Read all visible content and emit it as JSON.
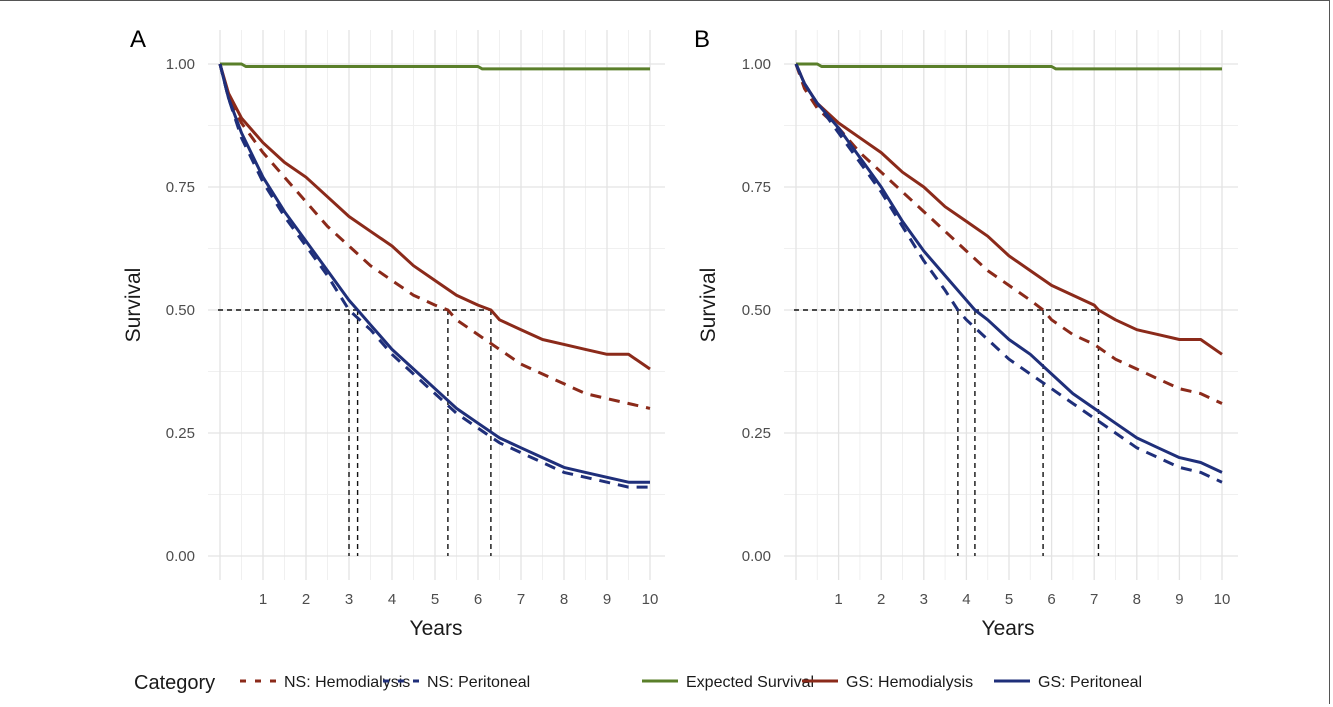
{
  "legend": {
    "title": "Category",
    "items": [
      {
        "label": "NS: Hemodialysis",
        "color": "#8b2a1a",
        "dash": true
      },
      {
        "label": "NS: Peritoneal",
        "color": "#1f2f7a",
        "dash": true
      },
      {
        "label": "Expected Survival",
        "color": "#5a7f2a",
        "dash": false
      },
      {
        "label": "GS: Hemodialysis",
        "color": "#8b2a1a",
        "dash": false
      },
      {
        "label": "GS: Peritoneal",
        "color": "#1f2f7a",
        "dash": false
      }
    ]
  },
  "chart_data": [
    {
      "panel": "A",
      "type": "line",
      "xlabel": "Years",
      "ylabel": "Survival",
      "xlim": [
        0,
        10
      ],
      "ylim": [
        0,
        1
      ],
      "xticks": [
        "1",
        "2",
        "3",
        "4",
        "5",
        "6",
        "7",
        "8",
        "9",
        "10"
      ],
      "yticks": [
        "0.00",
        "0.25",
        "0.50",
        "0.75",
        "1.00"
      ],
      "grid": true,
      "median_refs": [
        3.0,
        3.2,
        5.3,
        6.3
      ],
      "series": [
        {
          "name": "Expected Survival",
          "color": "#5a7f2a",
          "dash": false,
          "x": [
            0,
            0.5,
            0.6,
            6,
            6.1,
            10
          ],
          "y": [
            1.0,
            1.0,
            0.995,
            0.995,
            0.99,
            0.99
          ]
        },
        {
          "name": "GS: Hemodialysis",
          "color": "#8b2a1a",
          "dash": false,
          "x": [
            0,
            0.2,
            0.5,
            1,
            1.5,
            2,
            2.5,
            3,
            3.5,
            4,
            4.5,
            5,
            5.5,
            6,
            6.3,
            6.5,
            7,
            7.5,
            8,
            8.5,
            9,
            9.5,
            10
          ],
          "y": [
            1.0,
            0.94,
            0.89,
            0.84,
            0.8,
            0.77,
            0.73,
            0.69,
            0.66,
            0.63,
            0.59,
            0.56,
            0.53,
            0.51,
            0.5,
            0.48,
            0.46,
            0.44,
            0.43,
            0.42,
            0.41,
            0.41,
            0.38
          ]
        },
        {
          "name": "NS: Hemodialysis",
          "color": "#8b2a1a",
          "dash": true,
          "x": [
            0,
            0.2,
            0.5,
            1,
            1.5,
            2,
            2.5,
            3,
            3.5,
            4,
            4.5,
            5,
            5.3,
            5.5,
            6,
            6.5,
            7,
            7.5,
            8,
            8.5,
            9,
            9.5,
            10
          ],
          "y": [
            1.0,
            0.93,
            0.88,
            0.82,
            0.77,
            0.72,
            0.67,
            0.63,
            0.59,
            0.56,
            0.53,
            0.51,
            0.5,
            0.48,
            0.45,
            0.42,
            0.39,
            0.37,
            0.35,
            0.33,
            0.32,
            0.31,
            0.3
          ]
        },
        {
          "name": "GS: Peritoneal",
          "color": "#1f2f7a",
          "dash": false,
          "x": [
            0,
            0.2,
            0.5,
            1,
            1.5,
            2,
            2.5,
            3,
            3.2,
            3.5,
            4,
            4.5,
            5,
            5.5,
            6,
            6.5,
            7,
            7.5,
            8,
            8.5,
            9,
            9.5,
            10
          ],
          "y": [
            1.0,
            0.93,
            0.86,
            0.77,
            0.7,
            0.64,
            0.58,
            0.52,
            0.5,
            0.47,
            0.42,
            0.38,
            0.34,
            0.3,
            0.27,
            0.24,
            0.22,
            0.2,
            0.18,
            0.17,
            0.16,
            0.15,
            0.15
          ]
        },
        {
          "name": "NS: Peritoneal",
          "color": "#1f2f7a",
          "dash": true,
          "x": [
            0,
            0.2,
            0.5,
            1,
            1.5,
            2,
            2.5,
            3,
            3.5,
            4,
            4.5,
            5,
            5.5,
            6,
            6.5,
            7,
            7.5,
            8,
            8.5,
            9,
            9.5,
            10
          ],
          "y": [
            1.0,
            0.93,
            0.85,
            0.76,
            0.69,
            0.63,
            0.57,
            0.5,
            0.46,
            0.41,
            0.37,
            0.33,
            0.29,
            0.26,
            0.23,
            0.21,
            0.19,
            0.17,
            0.16,
            0.15,
            0.14,
            0.14
          ]
        }
      ]
    },
    {
      "panel": "B",
      "type": "line",
      "xlabel": "Years",
      "ylabel": "Survival",
      "xlim": [
        0,
        10
      ],
      "ylim": [
        0,
        1
      ],
      "xticks": [
        "1",
        "2",
        "3",
        "4",
        "5",
        "6",
        "7",
        "8",
        "9",
        "10"
      ],
      "yticks": [
        "0.00",
        "0.25",
        "0.50",
        "0.75",
        "1.00"
      ],
      "grid": true,
      "median_refs": [
        3.8,
        4.2,
        5.8,
        7.1
      ],
      "series": [
        {
          "name": "Expected Survival",
          "color": "#5a7f2a",
          "dash": false,
          "x": [
            0,
            0.5,
            0.6,
            6,
            6.1,
            10
          ],
          "y": [
            1.0,
            1.0,
            0.995,
            0.995,
            0.99,
            0.99
          ]
        },
        {
          "name": "GS: Hemodialysis",
          "color": "#8b2a1a",
          "dash": false,
          "x": [
            0,
            0.2,
            0.5,
            1,
            1.5,
            2,
            2.5,
            3,
            3.5,
            4,
            4.5,
            5,
            5.5,
            6,
            6.5,
            7,
            7.1,
            7.5,
            8,
            8.5,
            9,
            9.5,
            10
          ],
          "y": [
            1.0,
            0.96,
            0.92,
            0.88,
            0.85,
            0.82,
            0.78,
            0.75,
            0.71,
            0.68,
            0.65,
            0.61,
            0.58,
            0.55,
            0.53,
            0.51,
            0.5,
            0.48,
            0.46,
            0.45,
            0.44,
            0.44,
            0.41
          ]
        },
        {
          "name": "NS: Hemodialysis",
          "color": "#8b2a1a",
          "dash": true,
          "x": [
            0,
            0.2,
            0.5,
            1,
            1.5,
            2,
            2.5,
            3,
            3.5,
            4,
            4.5,
            5,
            5.5,
            5.8,
            6,
            6.5,
            7,
            7.5,
            8,
            8.5,
            9,
            9.5,
            10
          ],
          "y": [
            1.0,
            0.95,
            0.91,
            0.87,
            0.82,
            0.78,
            0.74,
            0.7,
            0.66,
            0.62,
            0.58,
            0.55,
            0.52,
            0.5,
            0.48,
            0.45,
            0.43,
            0.4,
            0.38,
            0.36,
            0.34,
            0.33,
            0.31
          ]
        },
        {
          "name": "GS: Peritoneal",
          "color": "#1f2f7a",
          "dash": false,
          "x": [
            0,
            0.2,
            0.5,
            1,
            1.5,
            2,
            2.5,
            3,
            3.5,
            4,
            4.2,
            4.5,
            5,
            5.5,
            6,
            6.5,
            7,
            7.5,
            8,
            8.5,
            9,
            9.5,
            10
          ],
          "y": [
            1.0,
            0.96,
            0.92,
            0.87,
            0.81,
            0.75,
            0.68,
            0.62,
            0.57,
            0.52,
            0.5,
            0.48,
            0.44,
            0.41,
            0.37,
            0.33,
            0.3,
            0.27,
            0.24,
            0.22,
            0.2,
            0.19,
            0.17
          ]
        },
        {
          "name": "NS: Peritoneal",
          "color": "#1f2f7a",
          "dash": true,
          "x": [
            0,
            0.2,
            0.5,
            1,
            1.5,
            2,
            2.5,
            3,
            3.5,
            3.8,
            4,
            4.5,
            5,
            5.5,
            6,
            6.5,
            7,
            7.5,
            8,
            8.5,
            9,
            9.5,
            10
          ],
          "y": [
            1.0,
            0.96,
            0.92,
            0.86,
            0.8,
            0.74,
            0.67,
            0.6,
            0.54,
            0.5,
            0.48,
            0.44,
            0.4,
            0.37,
            0.34,
            0.31,
            0.28,
            0.25,
            0.22,
            0.2,
            0.18,
            0.17,
            0.15
          ]
        }
      ]
    }
  ]
}
